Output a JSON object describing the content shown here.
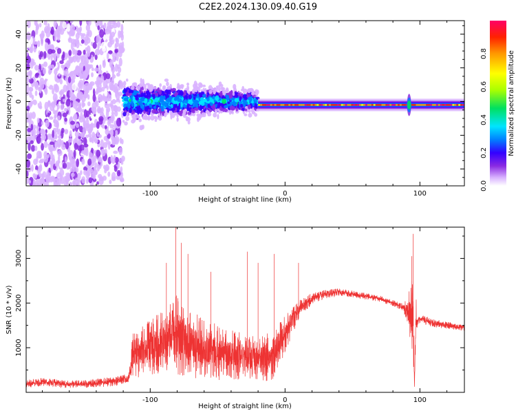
{
  "figure_title": "C2E2.2024.130.09.40.G19",
  "chart_data": [
    {
      "type": "heatmap",
      "title": "C2E2.2024.130.09.40.G19",
      "xlabel": "Height of straight line (km)",
      "ylabel": "Frequency (Hz)",
      "xlim": [
        -192,
        133
      ],
      "ylim": [
        -50,
        48
      ],
      "x_ticks": [
        -100,
        0,
        100
      ],
      "y_ticks": [
        -40,
        -20,
        0,
        20,
        40
      ],
      "grid": false,
      "colorbar": {
        "label": "Normalized spectral amplitude",
        "range": [
          0,
          1
        ],
        "ticks": [
          0.0,
          0.2,
          0.4,
          0.6,
          0.8
        ],
        "colormap": [
          "#ffffff",
          "#d9b3ff",
          "#8a2be2",
          "#3300ff",
          "#0080ff",
          "#00e5ff",
          "#00e060",
          "#aaff00",
          "#ffff00",
          "#ff9900",
          "#ff2200",
          "#ff0066"
        ]
      },
      "features": {
        "noise_region_x": [
          -192,
          -120
        ],
        "scatter_region_x": [
          -120,
          -20
        ],
        "tone_region_x": [
          -20,
          133
        ],
        "tone_frequency_hz": -2,
        "transient_x": 92
      }
    },
    {
      "type": "line",
      "xlabel": "Height of straight line (km)",
      "ylabel": "SNR (10 * v/v)",
      "xlim": [
        -192,
        133
      ],
      "ylim": [
        0,
        3700
      ],
      "x_ticks": [
        -100,
        0,
        100
      ],
      "y_ticks": [
        1000,
        2000,
        3000
      ],
      "grid": false,
      "color": "#ee3333",
      "series": [
        {
          "name": "",
          "x": [
            -192,
            -180,
            -160,
            -140,
            -125,
            -116,
            -113,
            -110,
            -100,
            -90,
            -80,
            -70,
            -60,
            -50,
            -40,
            -30,
            -20,
            -10,
            0,
            10,
            20,
            30,
            40,
            50,
            60,
            70,
            80,
            88,
            92,
            95,
            96,
            97,
            98,
            100,
            110,
            120,
            133
          ],
          "y": [
            190,
            230,
            180,
            210,
            250,
            300,
            850,
            850,
            1000,
            1150,
            1300,
            1100,
            950,
            900,
            850,
            800,
            750,
            800,
            1300,
            1850,
            2100,
            2200,
            2250,
            2200,
            2150,
            2100,
            2000,
            1900,
            1800,
            1750,
            100,
            1600,
            1600,
            1650,
            1550,
            1500,
            1450
          ],
          "spread": [
            130,
            140,
            120,
            140,
            150,
            200,
            700,
            750,
            900,
            1100,
            1300,
            1100,
            950,
            900,
            800,
            750,
            700,
            800,
            600,
            300,
            180,
            150,
            120,
            110,
            110,
            100,
            100,
            120,
            700,
            1400,
            100,
            900,
            150,
            150,
            130,
            120,
            110
          ],
          "peaks": [
            [
              -81,
              3720
            ],
            [
              -77,
              3350
            ],
            [
              -72,
              3100
            ],
            [
              -88,
              2900
            ],
            [
              -55,
              2700
            ],
            [
              -28,
              3150
            ],
            [
              -8,
              3100
            ],
            [
              -20,
              2900
            ],
            [
              10,
              2900
            ],
            [
              95,
              3550
            ],
            [
              94,
              3050
            ]
          ]
        }
      ]
    }
  ]
}
